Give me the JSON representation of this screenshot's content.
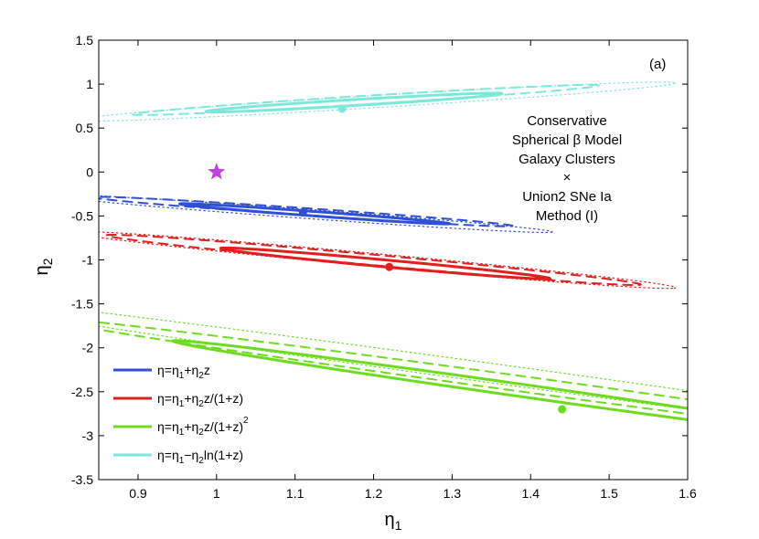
{
  "chart_data": {
    "type": "contour",
    "title": "",
    "panel_label": "(a)",
    "xlabel_base": "η",
    "xlabel_sub": "1",
    "ylabel_base": "η",
    "ylabel_sub": "2",
    "xlim": [
      0.85,
      1.6
    ],
    "ylim": [
      -3.5,
      1.5
    ],
    "xticks": [
      0.9,
      1.0,
      1.1,
      1.2,
      1.3,
      1.4,
      1.5,
      1.6
    ],
    "xtick_labels": [
      "0.9",
      "1",
      "1.1",
      "1.2",
      "1.3",
      "1.4",
      "1.5",
      "1.6"
    ],
    "yticks": [
      1.5,
      1.0,
      0.5,
      0.0,
      -0.5,
      -1.0,
      -1.5,
      -2.0,
      -2.5,
      -3.0,
      -3.5
    ],
    "ytick_labels": [
      "1.5",
      "1",
      "0.5",
      "0",
      "-0.5",
      "-1",
      "-1.5",
      "-2",
      "-2.5",
      "-3",
      "-3.5"
    ],
    "annotation_lines": [
      "Conservative",
      "Spherical β Model",
      "Galaxy Clusters",
      "×",
      "Union2 SNe Ia",
      "Method (I)"
    ],
    "reference_point": {
      "name": "star",
      "x": 1.0,
      "y": 0.0,
      "color": "#c040e0"
    },
    "series": [
      {
        "name": "linear",
        "color": "#2f4fd6",
        "best_fit": {
          "x": 1.11,
          "y": -0.46
        },
        "contours": [
          {
            "level": "1σ",
            "cx": 1.125,
            "cy": -0.475,
            "a": 0.2059,
            "b": 0.0211,
            "angle_deg": -33.7
          },
          {
            "level": "2σ",
            "cx": 1.11,
            "cy": -0.45,
            "a": 0.3133,
            "b": 0.0347,
            "angle_deg": -31.8
          },
          {
            "level": "3σ",
            "cx": 1.105,
            "cy": -0.47,
            "a": 0.3864,
            "b": 0.0435,
            "angle_deg": -33.7
          }
        ]
      },
      {
        "name": "z/(1+z)",
        "color": "#e21f1f",
        "best_fit": {
          "x": 1.22,
          "y": -1.08
        },
        "contours": [
          {
            "level": "1σ",
            "cx": 1.215,
            "cy": -1.04,
            "a": 0.2723,
            "b": 0.0306,
            "angle_deg": -40.0
          },
          {
            "level": "2σ",
            "cx": 1.2,
            "cy": -1.0,
            "a": 0.4423,
            "b": 0.046,
            "angle_deg": -40.0
          },
          {
            "level": "3σ",
            "cx": 1.2,
            "cy": -1.0,
            "a": 0.5,
            "b": 0.057,
            "angle_deg": -40.0
          }
        ]
      },
      {
        "name": "z/(1+z)^2",
        "color": "#6ddc1f",
        "best_fit": {
          "x": 1.44,
          "y": -2.7
        },
        "contours": [
          {
            "level": "1σ",
            "cx": 1.4,
            "cy": -2.5,
            "a": 0.738,
            "b": 0.044,
            "angle_deg": -52.0
          },
          {
            "level": "2σ",
            "cx": 1.38,
            "cy": -2.4,
            "a": 0.948,
            "b": 0.056,
            "angle_deg": -51.0
          },
          {
            "level": "3σ",
            "cx": 1.36,
            "cy": -2.3,
            "a": 1.16,
            "b": 0.07,
            "angle_deg": -51.0
          }
        ]
      },
      {
        "name": "ln(1+z)",
        "color": "#7ce8dc",
        "best_fit": {
          "x": 1.16,
          "y": 0.72
        },
        "contours": [
          {
            "level": "1σ",
            "cx": 1.175,
            "cy": 0.79,
            "a": 0.2148,
            "b": 0.0297,
            "angle_deg": 29.0
          },
          {
            "level": "2σ",
            "cx": 1.19,
            "cy": 0.82,
            "a": 0.34,
            "b": 0.042,
            "angle_deg": 29.5
          },
          {
            "level": "3σ",
            "cx": 1.2,
            "cy": 0.8,
            "a": 0.44,
            "b": 0.06,
            "angle_deg": 29.5
          }
        ]
      }
    ],
    "legend": {
      "position": "bottom-left",
      "entries": [
        {
          "series": "linear",
          "color": "#2f4fd6",
          "base": "η=η",
          "s1": "1",
          "mid": "+η",
          "s2": "2",
          "tail": "z",
          "sup": ""
        },
        {
          "series": "z/(1+z)",
          "color": "#e21f1f",
          "base": "η=η",
          "s1": "1",
          "mid": "+η",
          "s2": "2",
          "tail": "z/(1+z)",
          "sup": ""
        },
        {
          "series": "z/(1+z)^2",
          "color": "#6ddc1f",
          "base": "η=η",
          "s1": "1",
          "mid": "+η",
          "s2": "2",
          "tail": "z/(1+z)",
          "sup": "2"
        },
        {
          "series": "ln(1+z)",
          "color": "#7ce8dc",
          "base": "η=η",
          "s1": "1",
          "mid": "−η",
          "s2": "2",
          "tail": "ln(1+z)",
          "sup": ""
        }
      ]
    }
  }
}
